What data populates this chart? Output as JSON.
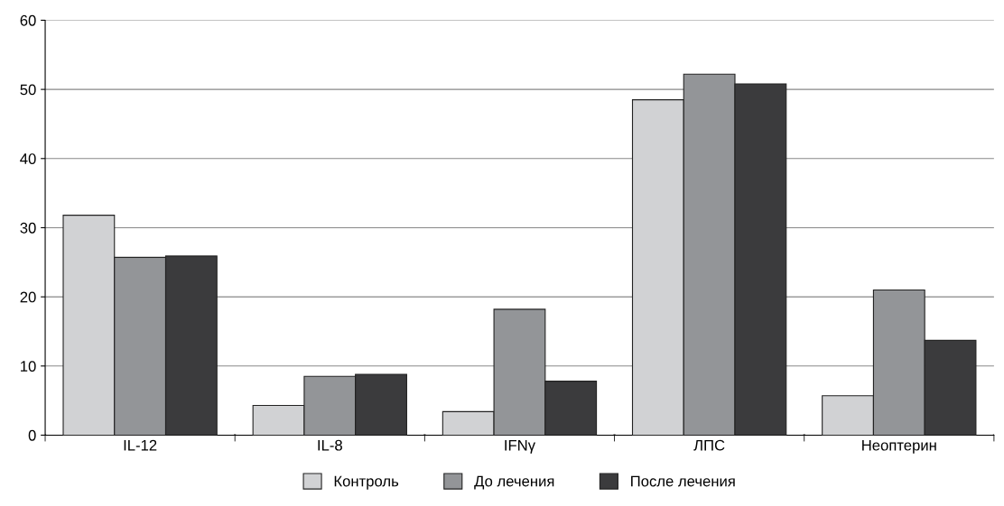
{
  "chart_data": {
    "type": "bar",
    "categories": [
      "IL-12",
      "IL-8",
      "IFNγ",
      "ЛПС",
      "Неоптерин"
    ],
    "series": [
      {
        "name": "Контроль",
        "color": "#d1d2d4",
        "values": [
          31.8,
          4.3,
          3.4,
          48.5,
          5.7
        ]
      },
      {
        "name": "До лечения",
        "color": "#939598",
        "values": [
          25.7,
          8.5,
          18.2,
          52.2,
          21.0
        ]
      },
      {
        "name": "После лечения",
        "color": "#3b3b3d",
        "values": [
          25.9,
          8.8,
          7.8,
          50.8,
          13.7
        ]
      }
    ],
    "ylim": [
      0,
      60
    ],
    "yticks": [
      0,
      10,
      20,
      30,
      40,
      50,
      60
    ],
    "grid": "y",
    "legend": "bottom"
  }
}
